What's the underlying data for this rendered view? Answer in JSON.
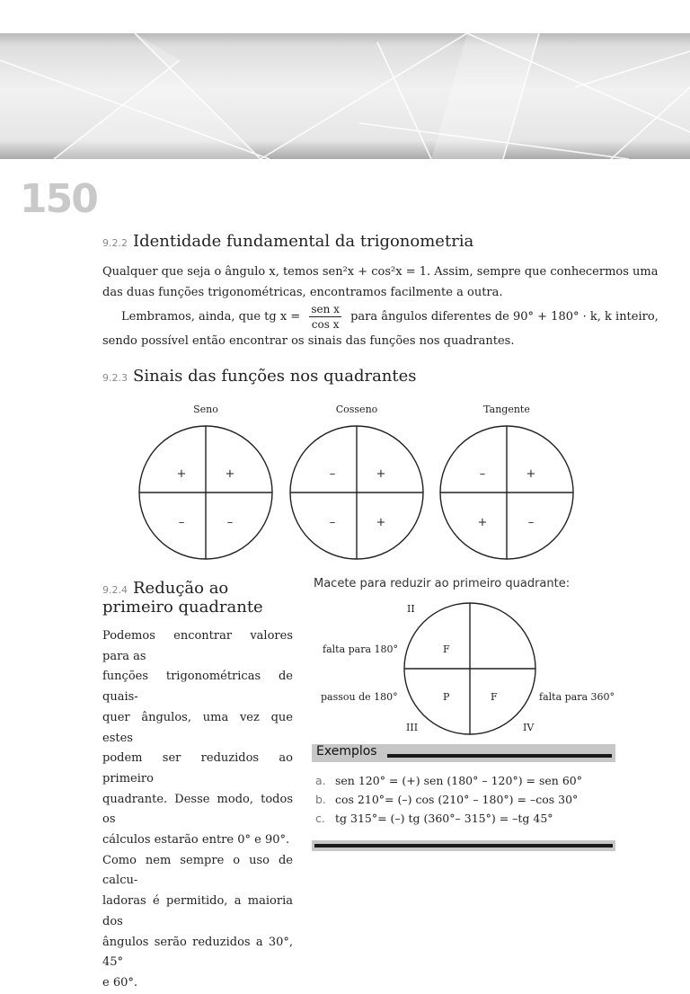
{
  "page_number": "150",
  "s922": {
    "num": "9.2.2",
    "title": "Identidade fundamental da trigonometria",
    "p1_line1": "Qualquer que seja o ângulo x, temos sen²x + cos²x = 1. Assim, sempre que conhecermos uma",
    "p1_line2": "das duas funções trigonométricas, encontramos facilmente a outra.",
    "p2_pre": "Lembramos, ainda, que tg x =",
    "frac_num": "sen x",
    "frac_den": "cos x",
    "p2_post": "para ângulos diferentes de 90° + 180° · k, k inteiro,",
    "p2_line2": "sendo possível então encontrar os sinais das funções nos quadrantes."
  },
  "s923": {
    "num": "9.2.3",
    "title": "Sinais das funções nos quadrantes",
    "circles": [
      {
        "label": "Seno",
        "q1": "+",
        "q2": "+",
        "q3": "–",
        "q4": "–"
      },
      {
        "label": "Cosseno",
        "q1": "+",
        "q2": "–",
        "q3": "–",
        "q4": "+"
      },
      {
        "label": "Tangente",
        "q1": "+",
        "q2": "–",
        "q3": "+",
        "q4": "–"
      }
    ]
  },
  "s924": {
    "num": "9.2.4",
    "title_line1": "Redução ao",
    "title_line2": "primeiro quadrante",
    "lines": [
      "Podemos encontrar valores para as",
      "funções trigonométricas de quais-",
      "quer ângulos, uma vez que estes",
      "podem ser reduzidos ao primeiro",
      "quadrante. Desse modo, todos os",
      "cálculos estarão entre 0° e 90°.",
      "Como nem sempre o uso de calcu-",
      "ladoras é permitido, a maioria dos",
      "ângulos serão reduzidos a 30°, 45°",
      "e 60°."
    ]
  },
  "macete": {
    "title": "Macete para reduzir ao primeiro quadrante:",
    "II": "II",
    "III": "III",
    "IV": "IV",
    "falta180": "falta para 180°",
    "passou180": "passou de 180°",
    "falta360": "falta para 360°",
    "F_q2": "F",
    "P_q3": "P",
    "F_q4": "F"
  },
  "exemplos": {
    "title": "Exemplos",
    "items": [
      {
        "letter": "a.",
        "text": "sen 120° = (+) sen (180° – 120°) = sen 60°"
      },
      {
        "letter": "b.",
        "text": "cos 210°= (–) cos (210° – 180°) = –cos 30°"
      },
      {
        "letter": "c.",
        "text": "tg 315°= (–) tg (360°– 315°) = –tg 45°"
      }
    ]
  }
}
